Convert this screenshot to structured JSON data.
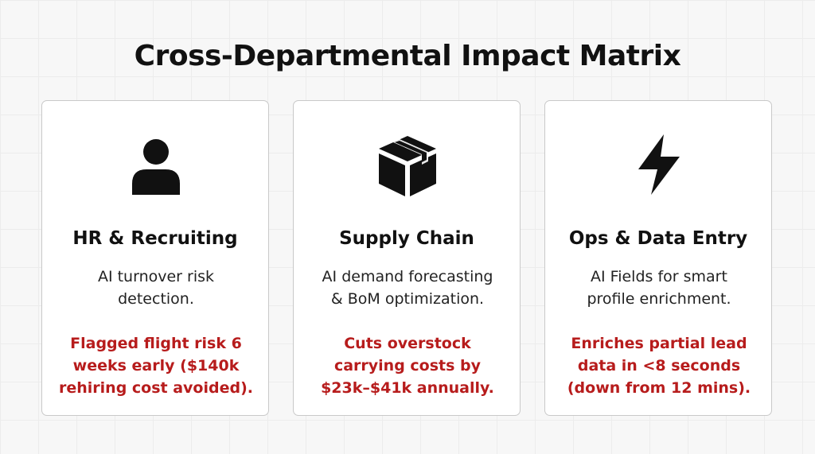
{
  "title": "Cross-Departmental Impact Matrix",
  "cards": [
    {
      "title": "HR & Recruiting",
      "description": "AI turnover risk detection.",
      "highlight": "Flagged flight risk 6 weeks early ($140k rehiring cost avoided)."
    },
    {
      "title": "Supply Chain",
      "description": "AI demand forecasting & BoM optimization.",
      "highlight": "Cuts overstock carrying costs by $23k–$41k annually."
    },
    {
      "title": "Ops & Data Entry",
      "description": "AI Fields for smart profile enrichment.",
      "highlight": "Enriches partial lead data in <8 seconds (down from 12 mins)."
    }
  ]
}
